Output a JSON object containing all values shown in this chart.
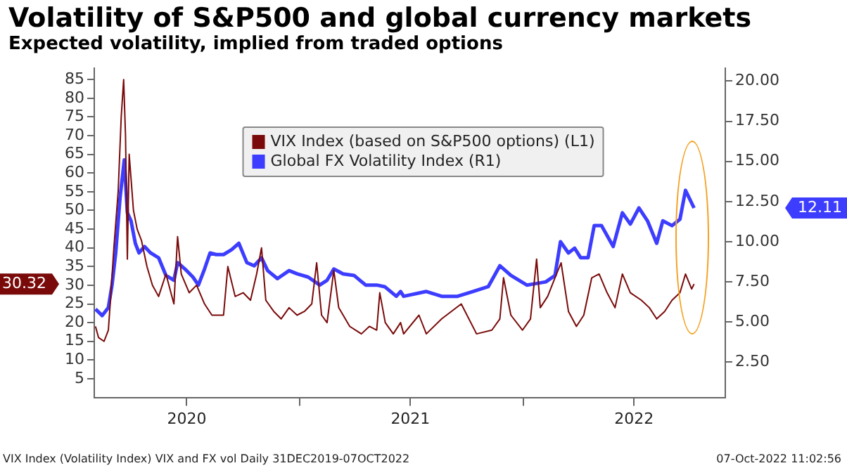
{
  "chart_data": {
    "type": "line",
    "title": "Volatility of S&P500 and global currency markets",
    "subtitle": "Expected volatility, implied from traded options",
    "annotations": [
      "30.32",
      "12.11",
      "VIX Index (Volatility Index) VIX and FX vol  Daily 31DEC2019-07OCT2022",
      "07-Oct-2022 11:02:56"
    ],
    "legend": "top",
    "grid": false,
    "marker": "none",
    "xlim": [
      "2020-02-01",
      "2022-11-27"
    ],
    "xticks": [
      {
        "value": "2020-07-01",
        "label": "2020"
      },
      {
        "value": "2021-01-01",
        "label": null
      },
      {
        "value": "2021-07-01",
        "label": "2021"
      },
      {
        "value": "2022-01-01",
        "label": null
      },
      {
        "value": "2022-07-01",
        "label": "2022"
      }
    ],
    "ylim": [
      0,
      88
    ],
    "yticks": [
      5,
      10,
      15,
      20,
      25,
      30,
      35,
      40,
      45,
      50,
      55,
      60,
      65,
      70,
      75,
      80,
      85
    ],
    "y2lim": [
      0.3,
      20.8
    ],
    "y2ticks": [
      {
        "value": 2.5,
        "label": "2.50"
      },
      {
        "value": 5,
        "label": "5.00"
      },
      {
        "value": 7.5,
        "label": "7.50"
      },
      {
        "value": 10,
        "label": "10.00"
      },
      {
        "value": 12.5,
        "label": "12.50"
      },
      {
        "value": 15,
        "label": "15.00"
      },
      {
        "value": 17.5,
        "label": "17.50"
      },
      {
        "value": 20,
        "label": "20.00"
      }
    ],
    "series": [
      {
        "name": "VIX Index (based on S&P500 options) (L1)",
        "color": "#7a0a0a",
        "axis": "y",
        "x": [
          "2020-02-03",
          "2020-02-08",
          "2020-02-17",
          "2020-02-24",
          "2020-02-27",
          "2020-03-04",
          "2020-03-11",
          "2020-03-16",
          "2020-03-20",
          "2020-03-23",
          "2020-03-26",
          "2020-03-29",
          "2020-04-05",
          "2020-04-11",
          "2020-04-18",
          "2020-04-27",
          "2020-05-06",
          "2020-05-16",
          "2020-05-28",
          "2020-06-10",
          "2020-06-16",
          "2020-06-22",
          "2020-07-05",
          "2020-07-17",
          "2020-07-30",
          "2020-08-11",
          "2020-08-30",
          "2020-09-06",
          "2020-09-18",
          "2020-10-01",
          "2020-10-13",
          "2020-10-23",
          "2020-10-31",
          "2020-11-07",
          "2020-11-20",
          "2020-12-02",
          "2020-12-15",
          "2020-12-28",
          "2021-01-09",
          "2021-01-21",
          "2021-01-29",
          "2021-02-06",
          "2021-02-15",
          "2021-02-26",
          "2021-03-06",
          "2021-03-24",
          "2021-04-12",
          "2021-04-25",
          "2021-05-07",
          "2021-05-12",
          "2021-05-21",
          "2021-06-03",
          "2021-06-15",
          "2021-06-20",
          "2021-07-15",
          "2021-07-27",
          "2021-08-21",
          "2021-09-22",
          "2021-10-17",
          "2021-11-11",
          "2021-11-24",
          "2021-11-30",
          "2021-12-12",
          "2021-12-31",
          "2022-01-13",
          "2022-01-23",
          "2022-01-29",
          "2022-02-10",
          "2022-02-22",
          "2022-03-04",
          "2022-03-16",
          "2022-03-29",
          "2022-04-10",
          "2022-04-23",
          "2022-05-05",
          "2022-05-18",
          "2022-05-31",
          "2022-06-12",
          "2022-06-25",
          "2022-07-13",
          "2022-07-26",
          "2022-08-07",
          "2022-08-20",
          "2022-09-01",
          "2022-09-14",
          "2022-09-23",
          "2022-10-03",
          "2022-10-07"
        ],
        "values": [
          19,
          16,
          15,
          18,
          25,
          40,
          55,
          75,
          85,
          70,
          37,
          65,
          50,
          45,
          42,
          35,
          30,
          27,
          33,
          25,
          43,
          33,
          28,
          30,
          25,
          22,
          22,
          35,
          27,
          28,
          26,
          33,
          40,
          26,
          23,
          21,
          24,
          22,
          23,
          25,
          36,
          22,
          20,
          34,
          24,
          19,
          17,
          19,
          18,
          28,
          20,
          17,
          20,
          17,
          22,
          17,
          21,
          25,
          17,
          18,
          21,
          32,
          22,
          18,
          21,
          37,
          24,
          27,
          32,
          36,
          23,
          19,
          22,
          32,
          33,
          28,
          24,
          33,
          28,
          26,
          24,
          21,
          23,
          26,
          28,
          33,
          29,
          30.3
        ]
      },
      {
        "name": "Global FX Volatility Index (R1)",
        "color": "#3d3dff",
        "axis": "y2",
        "x": [
          "2020-02-03",
          "2020-02-14",
          "2020-02-24",
          "2020-03-01",
          "2020-03-07",
          "2020-03-14",
          "2020-03-21",
          "2020-03-26",
          "2020-04-01",
          "2020-04-08",
          "2020-04-14",
          "2020-04-23",
          "2020-05-03",
          "2020-05-16",
          "2020-05-28",
          "2020-06-10",
          "2020-06-16",
          "2020-06-28",
          "2020-07-11",
          "2020-07-20",
          "2020-07-30",
          "2020-08-08",
          "2020-08-18",
          "2020-08-30",
          "2020-09-12",
          "2020-09-24",
          "2020-10-07",
          "2020-10-19",
          "2020-10-31",
          "2020-11-10",
          "2020-11-26",
          "2020-12-15",
          "2020-12-28",
          "2021-01-15",
          "2021-02-03",
          "2021-02-15",
          "2021-02-26",
          "2021-03-13",
          "2021-03-31",
          "2021-04-19",
          "2021-05-07",
          "2021-05-20",
          "2021-06-08",
          "2021-06-15",
          "2021-06-20",
          "2021-07-27",
          "2021-08-21",
          "2021-09-16",
          "2021-10-11",
          "2021-11-05",
          "2021-11-24",
          "2021-12-12",
          "2022-01-07",
          "2022-01-23",
          "2022-02-07",
          "2022-02-22",
          "2022-03-03",
          "2022-03-16",
          "2022-03-26",
          "2022-04-05",
          "2022-04-17",
          "2022-04-27",
          "2022-05-09",
          "2022-05-28",
          "2022-06-12",
          "2022-06-25",
          "2022-07-09",
          "2022-07-23",
          "2022-08-07",
          "2022-08-17",
          "2022-09-01",
          "2022-09-14",
          "2022-09-23",
          "2022-10-07"
        ],
        "values": [
          5.8,
          5.4,
          5.9,
          7.3,
          9.3,
          12.7,
          15.1,
          11.8,
          11.3,
          9.9,
          9.3,
          9.7,
          9.3,
          9.0,
          7.9,
          7.6,
          8.7,
          8.3,
          7.8,
          7.3,
          8.3,
          9.3,
          9.2,
          9.2,
          9.5,
          9.9,
          8.7,
          8.5,
          9.0,
          8.2,
          7.7,
          8.2,
          8.0,
          7.8,
          7.3,
          7.6,
          8.3,
          8.0,
          7.9,
          7.3,
          7.3,
          7.2,
          6.6,
          6.9,
          6.6,
          6.9,
          6.6,
          6.6,
          6.9,
          7.2,
          8.5,
          7.9,
          7.3,
          7.4,
          7.5,
          7.9,
          10.0,
          9.3,
          9.6,
          9.0,
          9.0,
          11.0,
          11.0,
          9.7,
          11.8,
          11.1,
          12.1,
          11.3,
          9.9,
          11.3,
          11.0,
          11.4,
          13.2,
          12.1
        ]
      }
    ]
  }
}
